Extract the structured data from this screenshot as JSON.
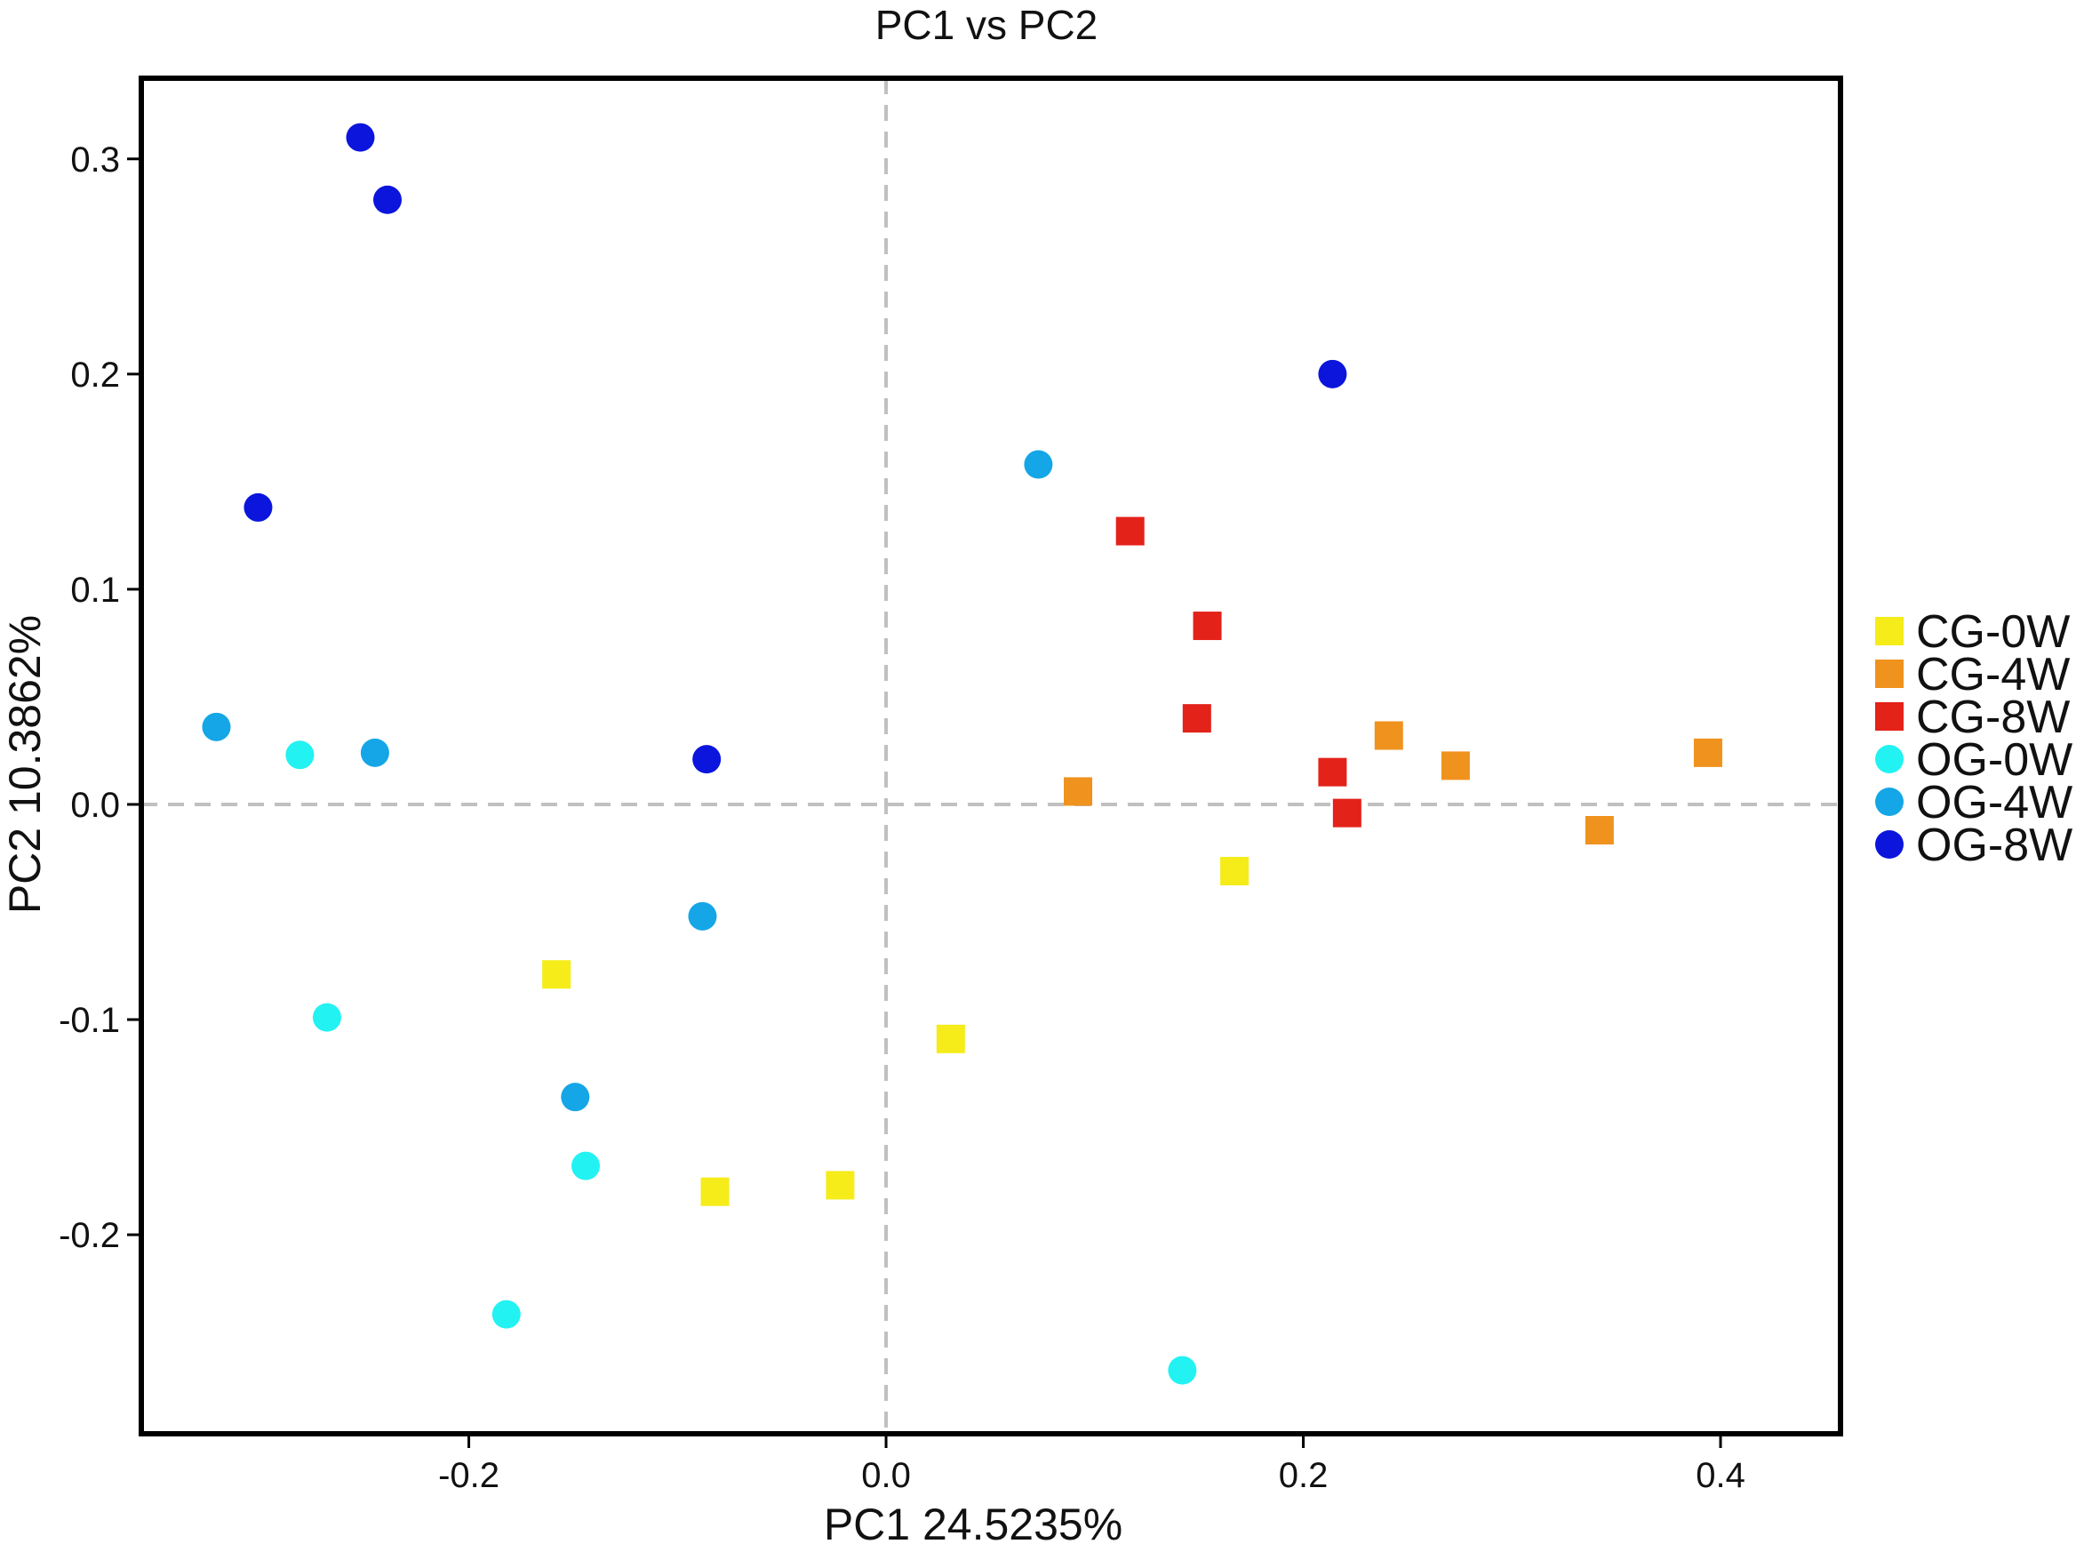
{
  "chart_data": {
    "type": "scatter",
    "title": "PC1 vs PC2",
    "xlabel": "PC1 24.5235%",
    "ylabel": "PC2 10.3862%",
    "xlim": [
      -0.357,
      0.4575
    ],
    "ylim": [
      -0.2925,
      0.3375
    ],
    "xticks": [
      -0.2,
      0.0,
      0.2,
      0.4
    ],
    "xtick_labels": [
      "-0.2",
      "0.0",
      "0.2",
      "0.4"
    ],
    "yticks": [
      -0.2,
      -0.1,
      0.0,
      0.1,
      0.2,
      0.3
    ],
    "ytick_labels": [
      "-0.2",
      "-0.1",
      "0.0",
      "0.1",
      "0.2",
      "0.3"
    ],
    "reference_lines": {
      "x": 0.0,
      "y": 0.0,
      "style": "dashed"
    },
    "legend_position": "right",
    "series": [
      {
        "name": "CG-0W",
        "marker": "square",
        "color": "#f5ec1a",
        "points": [
          [
            -0.158,
            -0.079
          ],
          [
            -0.082,
            -0.18
          ],
          [
            -0.022,
            -0.177
          ],
          [
            0.031,
            -0.109
          ],
          [
            0.167,
            -0.031
          ]
        ]
      },
      {
        "name": "CG-4W",
        "marker": "square",
        "color": "#f0921e",
        "points": [
          [
            0.092,
            0.006
          ],
          [
            0.241,
            0.032
          ],
          [
            0.273,
            0.018
          ],
          [
            0.342,
            -0.012
          ],
          [
            0.394,
            0.024
          ]
        ]
      },
      {
        "name": "CG-8W",
        "marker": "square",
        "color": "#e3221a",
        "points": [
          [
            0.117,
            0.127
          ],
          [
            0.154,
            0.083
          ],
          [
            0.149,
            0.04
          ],
          [
            0.214,
            0.015
          ],
          [
            0.221,
            -0.004
          ]
        ]
      },
      {
        "name": "OG-0W",
        "marker": "circle",
        "color": "#22f2f2",
        "points": [
          [
            -0.281,
            0.023
          ],
          [
            -0.268,
            -0.099
          ],
          [
            -0.144,
            -0.168
          ],
          [
            -0.182,
            -0.237
          ],
          [
            0.142,
            -0.263
          ]
        ]
      },
      {
        "name": "OG-4W",
        "marker": "circle",
        "color": "#14a6e6",
        "points": [
          [
            -0.321,
            0.036
          ],
          [
            -0.245,
            0.024
          ],
          [
            -0.088,
            -0.052
          ],
          [
            -0.149,
            -0.136
          ],
          [
            0.073,
            0.158
          ]
        ]
      },
      {
        "name": "OG-8W",
        "marker": "circle",
        "color": "#0b15dc",
        "points": [
          [
            -0.252,
            0.31
          ],
          [
            -0.239,
            0.281
          ],
          [
            -0.301,
            0.138
          ],
          [
            -0.086,
            0.021
          ],
          [
            0.214,
            0.2
          ]
        ]
      }
    ]
  }
}
